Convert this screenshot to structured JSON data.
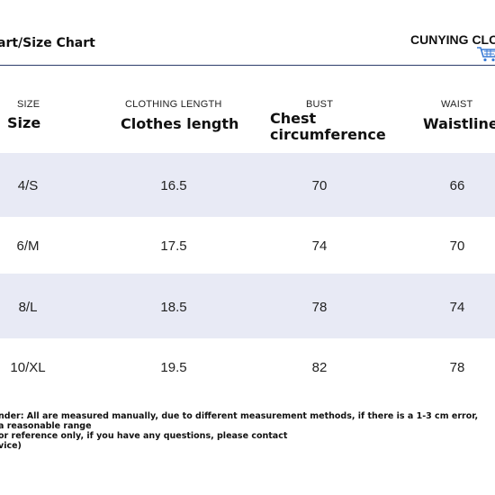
{
  "header": {
    "title": "art/Size Chart",
    "brand": "CUNYING CLO"
  },
  "columns": [
    {
      "small": "SIZE",
      "big": "Size"
    },
    {
      "small": "CLOTHING LENGTH",
      "big": "Clothes length"
    },
    {
      "small": "BUST",
      "big_line1": "Chest",
      "big_line2": "circumference"
    },
    {
      "small": "WAIST",
      "big": "Waistline"
    }
  ],
  "rows": [
    [
      "4/S",
      "16.5",
      "70",
      "66"
    ],
    [
      "6/M",
      "17.5",
      "74",
      "70"
    ],
    [
      "8/L",
      "18.5",
      "78",
      "74"
    ],
    [
      "10/XL",
      "19.5",
      "82",
      "78"
    ]
  ],
  "notes": [
    "nder: All are measured manually, due to different measurement methods, if there is a 1-3 cm error,",
    "a reasonable range",
    "or reference only, if you have any questions, please contact",
    "vice)"
  ],
  "colors": {
    "row_band": "#e8eaf5",
    "header_rule": "#2c3d6b",
    "cart": "#3a7bd5"
  },
  "icons": {
    "cart": "shopping-cart-icon"
  }
}
